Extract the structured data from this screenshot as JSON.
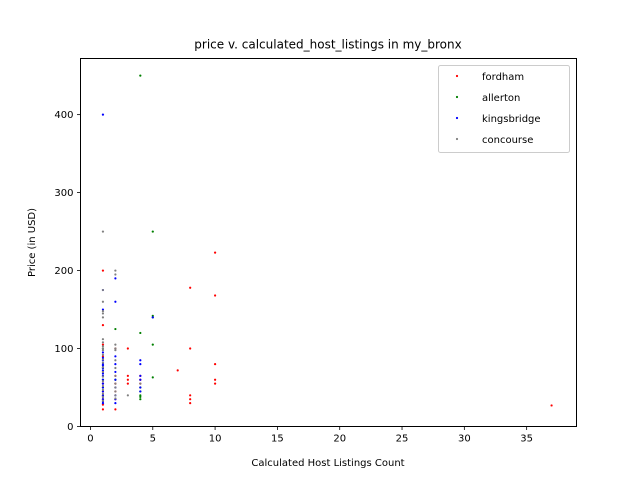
{
  "chart_data": {
    "type": "scatter",
    "title": "price v. calculated_host_listings in my_bronx",
    "xlabel": "Calculated Host Listings Count",
    "ylabel": "Price (in USD)",
    "xlim": [
      -0.8,
      39.0
    ],
    "ylim": [
      0,
      472
    ],
    "xticks": [
      0,
      5,
      10,
      15,
      20,
      25,
      30,
      35
    ],
    "yticks": [
      0,
      100,
      200,
      300,
      400
    ],
    "grid": false,
    "legend_position": "top-right",
    "series": [
      {
        "name": "fordham",
        "color": "#ff0000",
        "points": [
          [
            1,
            200
          ],
          [
            1,
            130
          ],
          [
            1,
            105
          ],
          [
            1,
            90
          ],
          [
            1,
            70
          ],
          [
            1,
            55
          ],
          [
            1,
            45
          ],
          [
            1,
            40
          ],
          [
            1,
            35
          ],
          [
            1,
            28
          ],
          [
            1,
            22
          ],
          [
            2,
            100
          ],
          [
            2,
            65
          ],
          [
            2,
            55
          ],
          [
            2,
            45
          ],
          [
            2,
            35
          ],
          [
            2,
            22
          ],
          [
            3,
            100
          ],
          [
            3,
            65
          ],
          [
            3,
            60
          ],
          [
            3,
            55
          ],
          [
            4,
            65
          ],
          [
            4,
            60
          ],
          [
            4,
            55
          ],
          [
            7,
            72
          ],
          [
            8,
            178
          ],
          [
            8,
            100
          ],
          [
            8,
            40
          ],
          [
            8,
            35
          ],
          [
            8,
            30
          ],
          [
            10,
            223
          ],
          [
            10,
            168
          ],
          [
            10,
            80
          ],
          [
            10,
            60
          ],
          [
            10,
            55
          ],
          [
            37,
            27
          ]
        ]
      },
      {
        "name": "allerton",
        "color": "#008000",
        "points": [
          [
            1,
            100
          ],
          [
            1,
            75
          ],
          [
            1,
            60
          ],
          [
            1,
            50
          ],
          [
            2,
            125
          ],
          [
            2,
            60
          ],
          [
            4,
            450
          ],
          [
            4,
            120
          ],
          [
            4,
            50
          ],
          [
            4,
            45
          ],
          [
            4,
            40
          ],
          [
            4,
            38
          ],
          [
            4,
            35
          ],
          [
            5,
            250
          ],
          [
            5,
            142
          ],
          [
            5,
            140
          ],
          [
            5,
            105
          ],
          [
            5,
            63
          ]
        ]
      },
      {
        "name": "kingsbridge",
        "color": "#0000ff",
        "points": [
          [
            1,
            400
          ],
          [
            1,
            175
          ],
          [
            1,
            150
          ],
          [
            1,
            95
          ],
          [
            1,
            88
          ],
          [
            1,
            85
          ],
          [
            1,
            80
          ],
          [
            1,
            78
          ],
          [
            1,
            75
          ],
          [
            1,
            72
          ],
          [
            1,
            68
          ],
          [
            1,
            65
          ],
          [
            1,
            60
          ],
          [
            1,
            55
          ],
          [
            1,
            50
          ],
          [
            1,
            45
          ],
          [
            1,
            40
          ],
          [
            1,
            38
          ],
          [
            1,
            35
          ],
          [
            1,
            32
          ],
          [
            1,
            30
          ],
          [
            2,
            190
          ],
          [
            2,
            160
          ],
          [
            2,
            90
          ],
          [
            2,
            80
          ],
          [
            2,
            70
          ],
          [
            2,
            60
          ],
          [
            2,
            50
          ],
          [
            2,
            40
          ],
          [
            2,
            35
          ],
          [
            2,
            30
          ],
          [
            4,
            85
          ],
          [
            4,
            80
          ],
          [
            4,
            65
          ],
          [
            4,
            60
          ],
          [
            4,
            50
          ],
          [
            4,
            45
          ],
          [
            5,
            140
          ]
        ]
      },
      {
        "name": "concourse",
        "color": "#808080",
        "points": [
          [
            1,
            250
          ],
          [
            1,
            175
          ],
          [
            1,
            160
          ],
          [
            1,
            148
          ],
          [
            1,
            145
          ],
          [
            1,
            140
          ],
          [
            1,
            112
          ],
          [
            1,
            108
          ],
          [
            1,
            103
          ],
          [
            1,
            100
          ],
          [
            1,
            98
          ],
          [
            1,
            92
          ],
          [
            1,
            86
          ],
          [
            1,
            82
          ],
          [
            1,
            76
          ],
          [
            1,
            70
          ],
          [
            1,
            64
          ],
          [
            1,
            58
          ],
          [
            1,
            52
          ],
          [
            1,
            47
          ],
          [
            1,
            42
          ],
          [
            1,
            38
          ],
          [
            1,
            33
          ],
          [
            2,
            200
          ],
          [
            2,
            195
          ],
          [
            2,
            105
          ],
          [
            2,
            100
          ],
          [
            2,
            98
          ],
          [
            2,
            85
          ],
          [
            2,
            75
          ],
          [
            2,
            65
          ],
          [
            2,
            55
          ],
          [
            2,
            50
          ],
          [
            2,
            45
          ],
          [
            2,
            40
          ],
          [
            2,
            36
          ],
          [
            3,
            40
          ],
          [
            4,
            55
          ]
        ]
      }
    ]
  }
}
